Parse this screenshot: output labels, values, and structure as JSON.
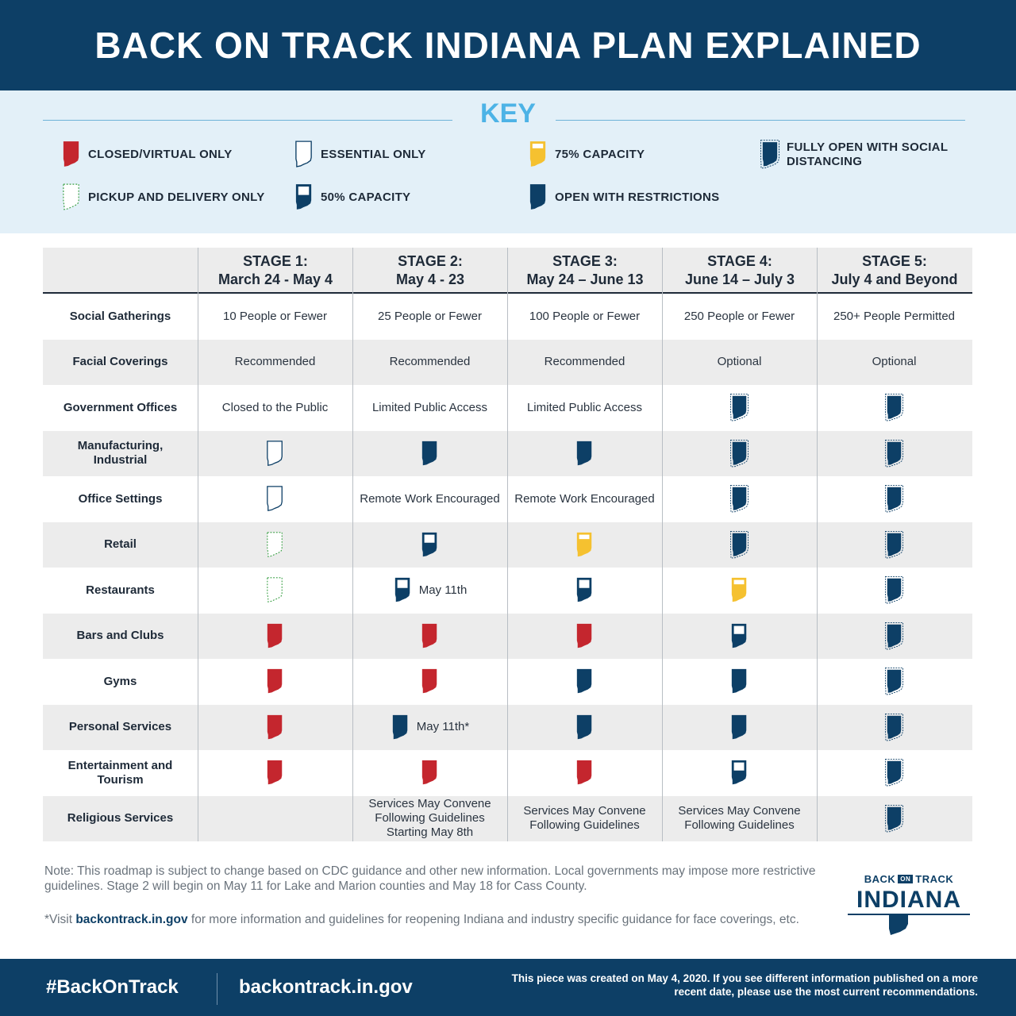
{
  "title": "BACK ON TRACK INDIANA PLAN EXPLAINED",
  "key": {
    "title": "KEY",
    "items": [
      {
        "label": "CLOSED/VIRTUAL ONLY",
        "icon": "indiana-closed-icon",
        "color": "#c4262e"
      },
      {
        "label": "ESSENTIAL ONLY",
        "icon": "indiana-essential-icon",
        "color": "#0d3f66"
      },
      {
        "label": "75% CAPACITY",
        "icon": "indiana-75-capacity-icon",
        "color": "#f5c130"
      },
      {
        "label": "FULLY OPEN WITH SOCIAL DISTANCING",
        "icon": "indiana-fully-open-icon",
        "color": "#0d3f66"
      },
      {
        "label": "PICKUP AND DELIVERY ONLY",
        "icon": "indiana-pickup-icon",
        "color": "#3aa045"
      },
      {
        "label": "50% CAPACITY",
        "icon": "indiana-50-capacity-icon",
        "color": "#0d3f66"
      },
      {
        "label": "OPEN WITH RESTRICTIONS",
        "icon": "indiana-open-restrictions-icon",
        "color": "#0d3f66"
      }
    ]
  },
  "stages": [
    {
      "name": "STAGE 1:",
      "dates": "March 24 - May 4"
    },
    {
      "name": "STAGE 2:",
      "dates": "May 4 - 23"
    },
    {
      "name": "STAGE 3:",
      "dates": "May 24 – June 13"
    },
    {
      "name": "STAGE 4:",
      "dates": "June 14 – July 3"
    },
    {
      "name": "STAGE 5:",
      "dates": "July 4 and Beyond"
    }
  ],
  "rows": [
    {
      "label": "Social Gatherings",
      "cells": [
        {
          "text": "10 People or Fewer"
        },
        {
          "text": "25 People or Fewer"
        },
        {
          "text": "100 People or Fewer"
        },
        {
          "text": "250 People or Fewer"
        },
        {
          "text": "250+ People Permitted"
        }
      ]
    },
    {
      "label": "Facial Coverings",
      "cells": [
        {
          "text": "Recommended"
        },
        {
          "text": "Recommended"
        },
        {
          "text": "Recommended"
        },
        {
          "text": "Optional"
        },
        {
          "text": "Optional"
        }
      ]
    },
    {
      "label": "Government Offices",
      "cells": [
        {
          "text": "Closed to the Public"
        },
        {
          "text": "Limited Public Access"
        },
        {
          "text": "Limited Public Access"
        },
        {
          "icon": "fully"
        },
        {
          "icon": "fully"
        }
      ]
    },
    {
      "label": "Manufacturing, Industrial",
      "cells": [
        {
          "icon": "essential"
        },
        {
          "icon": "restricted"
        },
        {
          "icon": "restricted"
        },
        {
          "icon": "fully"
        },
        {
          "icon": "fully"
        }
      ]
    },
    {
      "label": "Office Settings",
      "cells": [
        {
          "icon": "essential"
        },
        {
          "text": "Remote Work Encouraged"
        },
        {
          "text": "Remote Work Encouraged"
        },
        {
          "icon": "fully"
        },
        {
          "icon": "fully"
        }
      ]
    },
    {
      "label": "Retail",
      "cells": [
        {
          "icon": "pickup"
        },
        {
          "icon": "half"
        },
        {
          "icon": "threequarter"
        },
        {
          "icon": "fully"
        },
        {
          "icon": "fully"
        }
      ]
    },
    {
      "label": "Restaurants",
      "cells": [
        {
          "icon": "pickup"
        },
        {
          "icon": "half",
          "note": "May 11th"
        },
        {
          "icon": "half"
        },
        {
          "icon": "threequarter"
        },
        {
          "icon": "fully"
        }
      ]
    },
    {
      "label": "Bars and Clubs",
      "cells": [
        {
          "icon": "closed"
        },
        {
          "icon": "closed"
        },
        {
          "icon": "closed"
        },
        {
          "icon": "half"
        },
        {
          "icon": "fully"
        }
      ]
    },
    {
      "label": "Gyms",
      "cells": [
        {
          "icon": "closed"
        },
        {
          "icon": "closed"
        },
        {
          "icon": "restricted"
        },
        {
          "icon": "restricted"
        },
        {
          "icon": "fully"
        }
      ]
    },
    {
      "label": "Personal Services",
      "cells": [
        {
          "icon": "closed"
        },
        {
          "icon": "restricted",
          "note": "May 11th*"
        },
        {
          "icon": "restricted"
        },
        {
          "icon": "restricted"
        },
        {
          "icon": "fully"
        }
      ]
    },
    {
      "label": "Entertainment and Tourism",
      "cells": [
        {
          "icon": "closed"
        },
        {
          "icon": "closed"
        },
        {
          "icon": "closed"
        },
        {
          "icon": "half"
        },
        {
          "icon": "fully"
        }
      ]
    },
    {
      "label": "Religious Services",
      "cells": [
        {},
        {
          "text": "Services May Convene Following Guidelines Starting May 8th"
        },
        {
          "text": "Services May Convene Following Guidelines"
        },
        {
          "text": "Services May Convene Following Guidelines"
        },
        {
          "icon": "fully"
        }
      ]
    }
  ],
  "note": "Note: This roadmap is subject to change based on CDC guidance and other new information. Local governments may impose more restrictive guidelines. Stage 2 will begin on May 11 for Lake and Marion counties and May 18 for Cass County.",
  "visit": {
    "prefix": "*Visit ",
    "link": "backontrack.in.gov",
    "suffix": " for more information and guidelines for reopening Indiana and industry specific guidance for face coverings, etc."
  },
  "logo": {
    "back": "BACK",
    "on": "ON",
    "track": "TRACK",
    "state": "INDIANA"
  },
  "footer": {
    "hashtag": "#BackOnTrack",
    "url": "backontrack.in.gov",
    "created": "This piece was created on May 4, 2020. If you see different information published on a more recent date, please use the most current recommendations."
  },
  "colors": {
    "navy": "#0d3f66",
    "red": "#c4262e",
    "yellow": "#f5c130",
    "green": "#3aa045",
    "sky": "#4db3e6"
  }
}
